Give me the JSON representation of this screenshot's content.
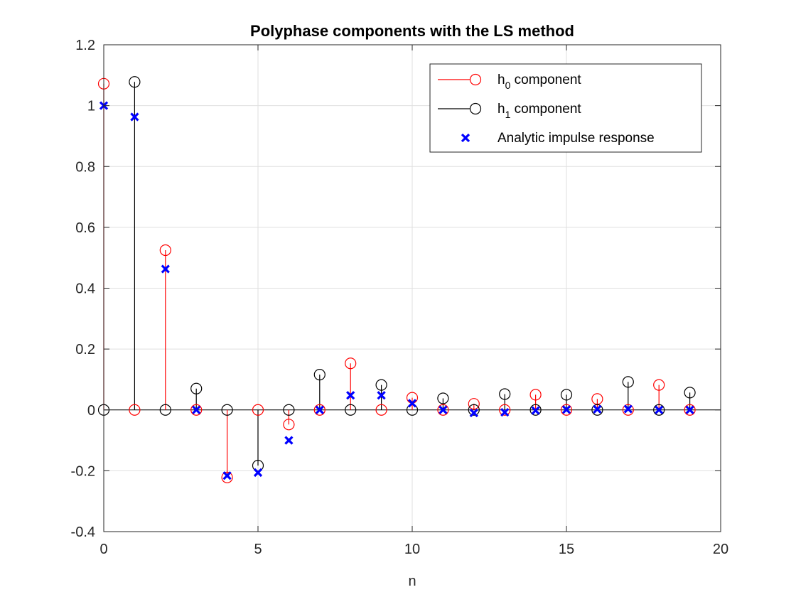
{
  "chart_data": {
    "type": "scatter",
    "title": "Polyphase components with the LS method",
    "xlabel": "n",
    "ylabel": "",
    "xlim": [
      0,
      20
    ],
    "ylim": [
      -0.4,
      1.2
    ],
    "xticks": [
      0,
      5,
      10,
      15,
      20
    ],
    "yticks": [
      -0.4,
      -0.2,
      0,
      0.2,
      0.4,
      0.6,
      0.8,
      1,
      1.2
    ],
    "xtick_labels": [
      "0",
      "5",
      "10",
      "15",
      "20"
    ],
    "ytick_labels": [
      "-0.4",
      "-0.2",
      "0",
      "0.2",
      "0.4",
      "0.6",
      "0.8",
      "1",
      "1.2"
    ],
    "grid": true,
    "legend_position": "top-right",
    "legend": [
      {
        "main": "h",
        "sub": "0",
        "rest": " component",
        "color": "#ff0000",
        "marker": "circle-stem"
      },
      {
        "main": "h",
        "sub": "1",
        "rest": " component",
        "color": "#000000",
        "marker": "circle-stem"
      },
      {
        "main": "Analytic impulse response",
        "sub": "",
        "rest": "",
        "color": "#0000ff",
        "marker": "x"
      }
    ],
    "series": [
      {
        "name": "h0 component",
        "kind": "stem",
        "color": "#ff0000",
        "x": [
          0,
          1,
          2,
          3,
          4,
          5,
          6,
          7,
          8,
          9,
          10,
          11,
          12,
          13,
          14,
          15,
          16,
          17,
          18,
          19
        ],
        "y": [
          1.072,
          0,
          0.525,
          0,
          -0.222,
          0,
          -0.048,
          0,
          0.153,
          0,
          0.04,
          0,
          0.02,
          0,
          0.05,
          0,
          0.036,
          0,
          0.082,
          0
        ]
      },
      {
        "name": "h1 component",
        "kind": "stem",
        "color": "#000000",
        "x": [
          0,
          1,
          2,
          3,
          4,
          5,
          6,
          7,
          8,
          9,
          10,
          11,
          12,
          13,
          14,
          15,
          16,
          17,
          18,
          19
        ],
        "y": [
          0,
          1.078,
          0,
          0.07,
          0,
          -0.183,
          0,
          0.116,
          0,
          0.082,
          0,
          0.038,
          0,
          0.052,
          0,
          0.05,
          0,
          0.092,
          0,
          0.057
        ]
      },
      {
        "name": "Analytic impulse response",
        "kind": "x",
        "color": "#0000ff",
        "x": [
          0,
          1,
          2,
          3,
          4,
          5,
          6,
          7,
          8,
          9,
          10,
          11,
          12,
          13,
          14,
          15,
          16,
          17,
          18,
          19
        ],
        "y": [
          1.0,
          0.963,
          0.463,
          0.0,
          -0.216,
          -0.206,
          -0.1,
          0.0,
          0.048,
          0.048,
          0.022,
          0.0,
          -0.01,
          -0.008,
          -0.002,
          0.001,
          0.002,
          0.003,
          0.0,
          0.0
        ]
      }
    ]
  }
}
